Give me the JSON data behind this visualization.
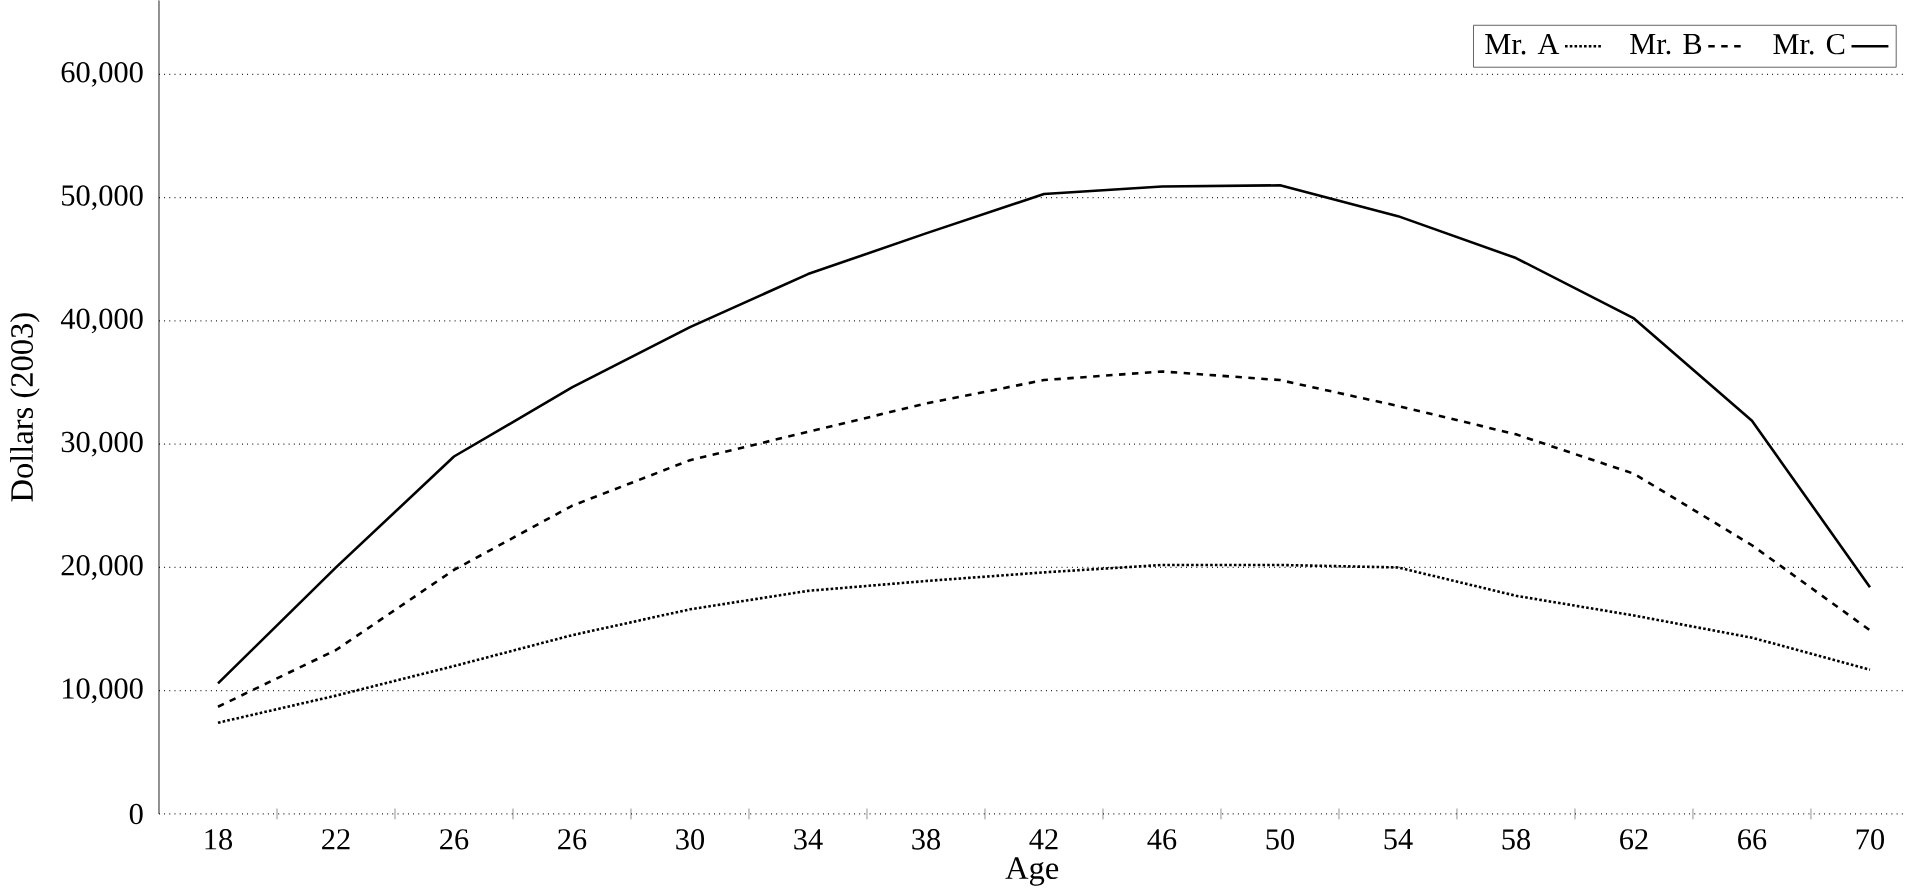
{
  "chart_data": {
    "type": "line",
    "xlabel": "Age",
    "ylabel": "Dollars (2003)",
    "categories": [
      "18",
      "22",
      "26",
      "26",
      "30",
      "34",
      "38",
      "42",
      "46",
      "50",
      "54",
      "58",
      "62",
      "66",
      "70"
    ],
    "series": [
      {
        "name": "Mr. A",
        "color": "#000000",
        "line_style": "dotted",
        "values": [
          7400,
          9600,
          12000,
          14500,
          16600,
          18100,
          18900,
          19600,
          20200,
          20200,
          20000,
          17700,
          16100,
          14300,
          11700
        ]
      },
      {
        "name": "Mr. B",
        "color": "#000000",
        "line_style": "dashed",
        "values": [
          8700,
          13300,
          19800,
          25000,
          28700,
          31000,
          33300,
          35200,
          35900,
          35200,
          33100,
          30800,
          27600,
          21800,
          14900
        ]
      },
      {
        "name": "Mr. C",
        "color": "#000000",
        "line_style": "solid",
        "values": [
          10600,
          20000,
          29000,
          34600,
          39500,
          43800,
          47100,
          50300,
          50900,
          51000,
          48500,
          45100,
          40200,
          31900,
          18400
        ]
      }
    ],
    "ylim": [
      0,
      66000
    ],
    "yticks": [
      {
        "value": 0,
        "label": "0"
      },
      {
        "value": 10000,
        "label": "10,000"
      },
      {
        "value": 20000,
        "label": "20,000"
      },
      {
        "value": 30000,
        "label": "30,000"
      },
      {
        "value": 40000,
        "label": "40,000"
      },
      {
        "value": 50000,
        "label": "50,000"
      },
      {
        "value": 60000,
        "label": "60,000"
      }
    ],
    "grid": "y",
    "legend": "top right",
    "marker": "none"
  }
}
